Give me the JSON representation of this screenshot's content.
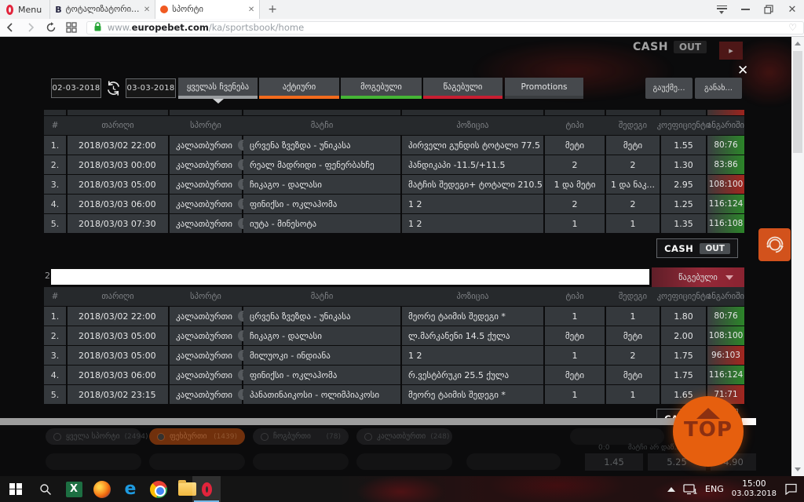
{
  "browser": {
    "menu_label": "Menu",
    "tab1_title": "ტოტალიზატორი -> თბ...",
    "tab1_favicon": "B",
    "tab2_title": "სპორტი",
    "url_www": "www.",
    "url_domain": "europebet.com",
    "url_path": "/ka/sportsbook/home"
  },
  "page": {
    "dim_header": {
      "cash": "CASH",
      "out": "OUT",
      "arrow": "▸"
    },
    "close_label": "✕",
    "filters": {
      "date_from": "02-03-2018",
      "date_to": "03-03-2018",
      "tab_all": "ყველას ჩვენება",
      "tab_active": "აქტიური",
      "tab_won": "მოგებული",
      "tab_lost": "წაგებული",
      "tab_promotions": "Promotions",
      "btn_cancel": "გაუქმე...",
      "btn_refresh": "განახ..."
    },
    "table_headers": [
      "#",
      "თარიღი",
      "სპორტი",
      "მატჩი",
      "პოზიცია",
      "ტიპი",
      "შედეგი",
      "კოეფიციენტი",
      "ანგარიში"
    ],
    "info_glyph": "i",
    "table1": {
      "rows": [
        {
          "n": "1.",
          "date": "2018/03/02 22:00",
          "sport": "კალათბურთი",
          "match": "ცრვენა ზვეზდა - უნიკასა",
          "position": "პირველი გუნდის ტოტალი 77.5",
          "type": "მეტი",
          "result": "მეტი",
          "odds": "1.55",
          "score": "80:76",
          "outcome": "won"
        },
        {
          "n": "2.",
          "date": "2018/03/03 00:00",
          "sport": "კალათბურთი",
          "match": "რეალ მადრიდი - ფენერბახჩე",
          "position": "ჰანდიკაპი -11.5/+11.5",
          "type": "2",
          "result": "2",
          "odds": "1.30",
          "score": "83:86",
          "outcome": "won"
        },
        {
          "n": "3.",
          "date": "2018/03/03 05:00",
          "sport": "კალათბურთი",
          "match": "ჩიკაგო - დალასი",
          "position": "მატჩის შედეგი+ ტოტალი 210.5",
          "type": "1 და მეტი",
          "result": "1 და ნაკ...",
          "odds": "2.95",
          "score": "108:100",
          "outcome": "lost"
        },
        {
          "n": "4.",
          "date": "2018/03/03 06:00",
          "sport": "კალათბურთი",
          "match": "ფინიქსი - ოკლაჰომა",
          "position": "1 2",
          "type": "2",
          "result": "2",
          "odds": "1.25",
          "score": "116:124",
          "outcome": "won"
        },
        {
          "n": "5.",
          "date": "2018/03/03 07:30",
          "sport": "კალათბურთი",
          "match": "იუტა - მინესოტა",
          "position": "1 2",
          "type": "1",
          "result": "1",
          "odds": "1.35",
          "score": "116:108",
          "outcome": "won"
        }
      ]
    },
    "cashout": {
      "cash": "CASH",
      "out": "OUT"
    },
    "section2": {
      "row_num": "2",
      "input_value": "",
      "status_label": "წაგებული"
    },
    "table2": {
      "rows": [
        {
          "n": "1.",
          "date": "2018/03/02 22:00",
          "sport": "კალათბურთი",
          "match": "ცრვენა ზვეზდა - უნიკასა",
          "position": "მეორე ტაიმის შედეგი *",
          "type": "1",
          "result": "1",
          "odds": "1.80",
          "score": "80:76",
          "outcome": "won"
        },
        {
          "n": "2.",
          "date": "2018/03/03 05:00",
          "sport": "კალათბურთი",
          "match": "ჩიკაგო - დალასი",
          "position": "ლ.მარკანენი 14.5 ქულა",
          "type": "მეტი",
          "result": "მეტი",
          "odds": "2.00",
          "score": "108:100",
          "outcome": "won"
        },
        {
          "n": "3.",
          "date": "2018/03/03 05:00",
          "sport": "კალათბურთი",
          "match": "მილუოკი - ინდიანა",
          "position": "1 2",
          "type": "1",
          "result": "2",
          "odds": "1.75",
          "score": "96:103",
          "outcome": "lost"
        },
        {
          "n": "4.",
          "date": "2018/03/03 06:00",
          "sport": "კალათბურთი",
          "match": "ფინიქსი - ოკლაჰომა",
          "position": "რ.ვესტბრუკი 25.5 ქულა",
          "type": "მეტი",
          "result": "მეტი",
          "odds": "1.75",
          "score": "116:124",
          "outcome": "won"
        },
        {
          "n": "5.",
          "date": "2018/03/02 23:15",
          "sport": "კალათბურთი",
          "match": "პანათინაიკოსი - ოლიმპიაკოსი",
          "position": "მეორე ტაიმის შედეგი *",
          "type": "1",
          "result": "1",
          "odds": "1.65",
          "score": "71:71",
          "outcome": "lost"
        }
      ]
    },
    "dim_pills": [
      {
        "label": "ყველა სპორტი",
        "count": "(2494)",
        "state": "plain"
      },
      {
        "label": "ფეხბურთი",
        "count": "(1439)",
        "state": "active"
      },
      {
        "label": "ჩოგბურთი",
        "count": "(78)",
        "state": "plain"
      },
      {
        "label": "კალათბურთი",
        "count": "(248)",
        "state": "plain"
      }
    ],
    "dim_match": {
      "score": "0:0",
      "status": "მატჩი არ დაწ..."
    },
    "dim_odds": [
      "1.45",
      "5.25",
      "4.90"
    ],
    "top_label": "TOP"
  },
  "taskbar": {
    "lang": "ENG",
    "time": "15:00",
    "date": "03.03.2018"
  }
}
